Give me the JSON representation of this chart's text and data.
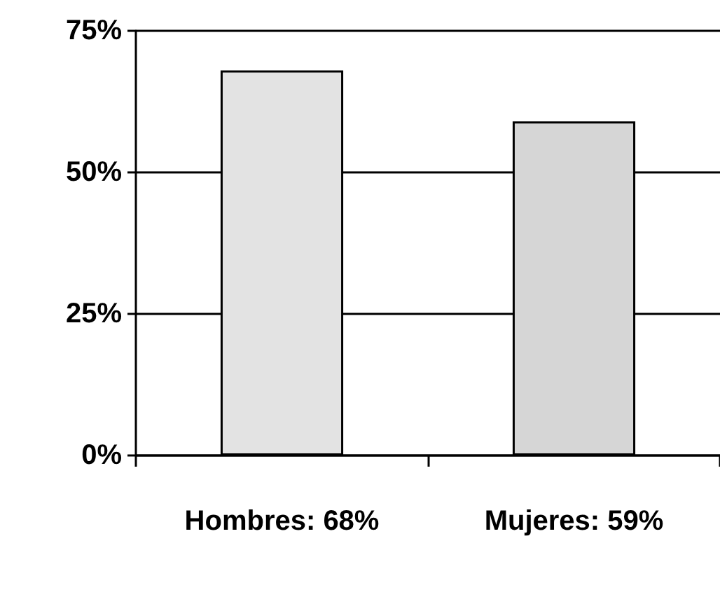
{
  "chart_data": {
    "type": "bar",
    "categories": [
      "Hombres: 68%",
      "Mujeres: 59%"
    ],
    "values": [
      68,
      59
    ],
    "colors": [
      "#e3e3e3",
      "#d6d6d6"
    ],
    "ylim": [
      0,
      75
    ],
    "yticks": [
      {
        "value": 0,
        "label": "0%"
      },
      {
        "value": 25,
        "label": "25%"
      },
      {
        "value": 50,
        "label": "50%"
      },
      {
        "value": 75,
        "label": "75%"
      }
    ],
    "grid": "y"
  }
}
